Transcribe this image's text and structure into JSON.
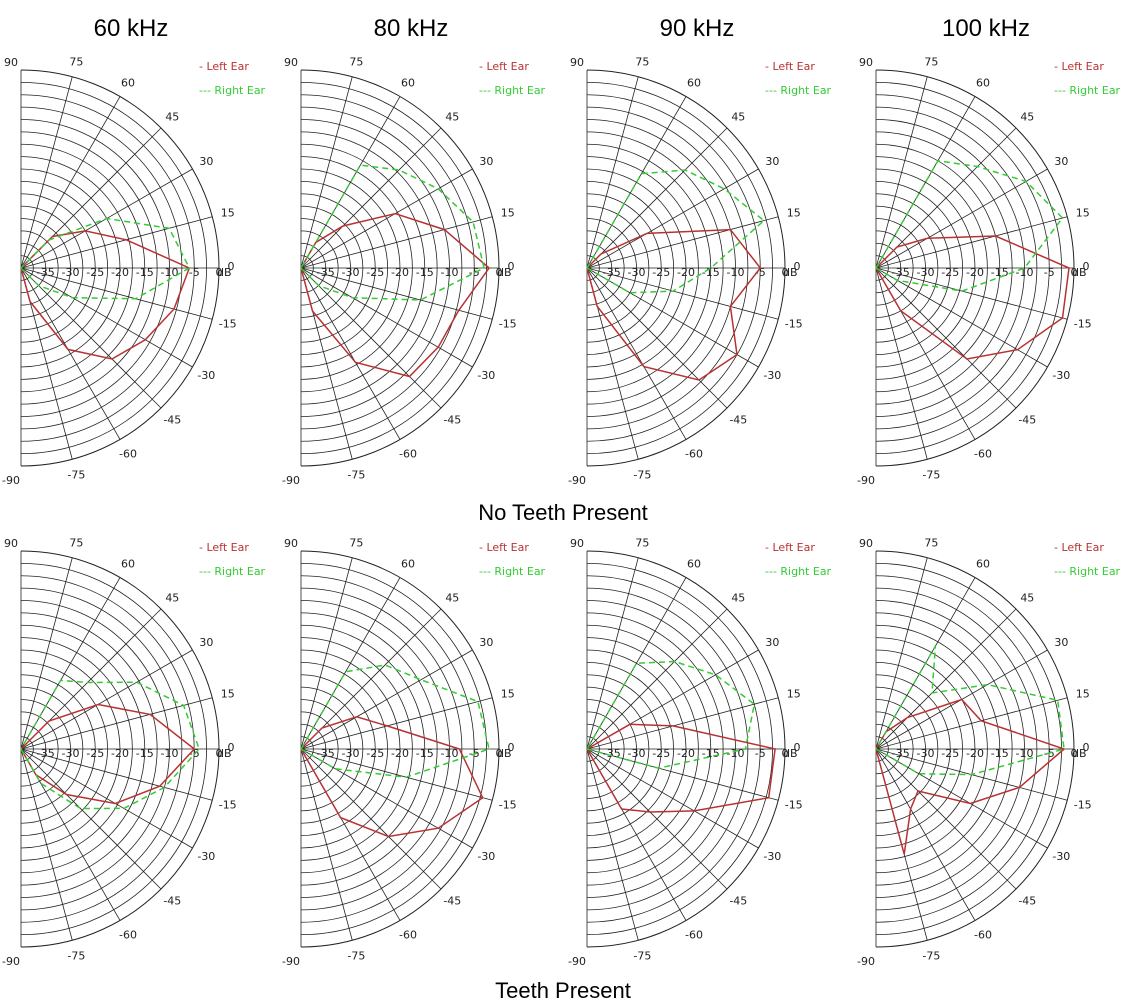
{
  "row_titles": [
    "No Teeth Present",
    "Teeth Present"
  ],
  "colors": {
    "left": "#b83232",
    "right": "#33cc33",
    "grid": "#222222"
  },
  "chart_data": [
    {
      "type": "polar",
      "row_title": "No Teeth Present",
      "title": "60 kHz",
      "radial_unit": "dB",
      "radial_ticks": [
        "-35",
        "-30",
        "-25",
        "-20",
        "-15",
        "-10",
        "-5",
        "0"
      ],
      "rlim": [
        -40,
        0
      ],
      "angle_ticks": [
        90,
        75,
        60,
        45,
        30,
        15,
        0,
        -15,
        -30,
        -45,
        -60,
        -75,
        -90
      ],
      "series": [
        {
          "name": "- Left Ear",
          "style": "solid",
          "angles": [
            -90,
            -75,
            -60,
            -45,
            -30,
            -15,
            0,
            15,
            30,
            45,
            60,
            75,
            90
          ],
          "values": [
            -40,
            -33,
            -21,
            -14,
            -11,
            -8,
            -6,
            -18,
            -25,
            -31,
            -40,
            -40,
            -40
          ]
        },
        {
          "name": "--- Right Ear",
          "style": "dashed",
          "angles": [
            -90,
            -75,
            -60,
            -45,
            -30,
            -15,
            0,
            15,
            30,
            45,
            60,
            75,
            90
          ],
          "values": [
            -40,
            -40,
            -40,
            -35,
            -28,
            -16,
            -6,
            -9,
            -20,
            -32,
            -40,
            -40,
            -40
          ]
        }
      ]
    },
    {
      "type": "polar",
      "row_title": "No Teeth Present",
      "title": "80 kHz",
      "radial_unit": "dB",
      "radial_ticks": [
        "-35",
        "-30",
        "-25",
        "-20",
        "-15",
        "-10",
        "-5",
        "0"
      ],
      "rlim": [
        -40,
        0
      ],
      "angle_ticks": [
        90,
        75,
        60,
        45,
        30,
        15,
        0,
        -15,
        -30,
        -45,
        -60,
        -75,
        -90
      ],
      "series": [
        {
          "name": "- Left Ear",
          "style": "solid",
          "angles": [
            -90,
            -75,
            -60,
            -45,
            -30,
            -15,
            0,
            15,
            30,
            45,
            60,
            75,
            90
          ],
          "values": [
            -40,
            -31,
            -18,
            -9,
            -8,
            -7,
            -2,
            -10,
            -18,
            -28,
            -34,
            -40,
            -40
          ]
        },
        {
          "name": "--- Right Ear",
          "style": "dashed",
          "angles": [
            -90,
            -75,
            -60,
            -45,
            -30,
            -15,
            0,
            15,
            30,
            45,
            60,
            75,
            90
          ],
          "values": [
            -40,
            -40,
            -40,
            -35,
            -28,
            -15,
            -3,
            -4,
            -8,
            -12,
            -16,
            -40,
            -40
          ]
        }
      ]
    },
    {
      "type": "polar",
      "row_title": "No Teeth Present",
      "title": "90 kHz",
      "radial_unit": "dB",
      "radial_ticks": [
        "-35",
        "-30",
        "-25",
        "-20",
        "-15",
        "-10",
        "-5",
        "0"
      ],
      "rlim": [
        -40,
        0
      ],
      "angle_ticks": [
        90,
        75,
        60,
        45,
        30,
        15,
        0,
        -15,
        -30,
        -45,
        -60,
        -75,
        -90
      ],
      "series": [
        {
          "name": "- Left Ear",
          "style": "solid",
          "angles": [
            -90,
            -75,
            -60,
            -45,
            -30,
            -15,
            0,
            15,
            30,
            45,
            60,
            75,
            90
          ],
          "values": [
            -40,
            -32,
            -17,
            -8,
            -5,
            -10,
            -5,
            -10,
            -26,
            -36,
            -40,
            -40,
            -40
          ]
        },
        {
          "name": "--- Right Ear",
          "style": "dashed",
          "angles": [
            -90,
            -75,
            -60,
            -45,
            -30,
            -15,
            0,
            15,
            30,
            45,
            60,
            75,
            90
          ],
          "values": [
            -40,
            -40,
            -40,
            -40,
            -30,
            -22,
            -15,
            -3,
            -8,
            -12,
            -18,
            -40,
            -40
          ]
        }
      ]
    },
    {
      "type": "polar",
      "row_title": "No Teeth Present",
      "title": "100 kHz",
      "radial_unit": "dB",
      "radial_ticks": [
        "-35",
        "-30",
        "-25",
        "-20",
        "-15",
        "-10",
        "-5",
        "0"
      ],
      "rlim": [
        -40,
        0
      ],
      "angle_ticks": [
        90,
        75,
        60,
        45,
        30,
        15,
        0,
        -15,
        -30,
        -45,
        -60,
        -75,
        -90
      ],
      "series": [
        {
          "name": "- Left Ear",
          "style": "solid",
          "angles": [
            -90,
            -75,
            -60,
            -45,
            -30,
            -15,
            0,
            15,
            30,
            45,
            60,
            75,
            90
          ],
          "values": [
            -40,
            -40,
            -30,
            -14,
            -7,
            -1,
            -1,
            -15,
            -28,
            -34,
            -40,
            -40,
            -40
          ]
        },
        {
          "name": "--- Right Ear",
          "style": "dashed",
          "angles": [
            -90,
            -75,
            -60,
            -45,
            -30,
            -15,
            0,
            15,
            30,
            45,
            60,
            75,
            90
          ],
          "values": [
            -40,
            -40,
            -40,
            -40,
            -35,
            -22,
            -10,
            -1,
            -5,
            -11,
            -15,
            -40,
            -40
          ]
        }
      ]
    },
    {
      "type": "polar",
      "row_title": "Teeth Present",
      "title": "60 kHz",
      "radial_unit": "dB",
      "radial_ticks": [
        "-35",
        "-30",
        "-25",
        "-20",
        "-15",
        "-10",
        "-5",
        "0"
      ],
      "rlim": [
        -40,
        0
      ],
      "angle_ticks": [
        90,
        75,
        60,
        45,
        30,
        15,
        0,
        -15,
        -30,
        -45,
        -60,
        -75,
        -90
      ],
      "series": [
        {
          "name": "- Left Ear",
          "style": "solid",
          "angles": [
            -90,
            -75,
            -60,
            -45,
            -30,
            -15,
            0,
            15,
            30,
            45,
            60,
            75,
            90
          ],
          "values": [
            -40,
            -40,
            -34,
            -27,
            -18,
            -11,
            -5,
            -13,
            -22,
            -32,
            -40,
            -40,
            -40
          ]
        },
        {
          "name": "--- Right Ear",
          "style": "dashed",
          "angles": [
            -90,
            -75,
            -60,
            -45,
            -30,
            -15,
            0,
            15,
            30,
            45,
            60,
            75,
            90
          ],
          "values": [
            -40,
            -40,
            -32,
            -23,
            -16,
            -10,
            -4,
            -6,
            -13,
            -21,
            -24,
            -40,
            -40
          ]
        }
      ]
    },
    {
      "type": "polar",
      "row_title": "Teeth Present",
      "title": "80 kHz",
      "radial_unit": "dB",
      "radial_ticks": [
        "-35",
        "-30",
        "-25",
        "-20",
        "-15",
        "-10",
        "-5",
        "0"
      ],
      "rlim": [
        -40,
        0
      ],
      "angle_ticks": [
        90,
        75,
        60,
        45,
        30,
        15,
        0,
        -15,
        -30,
        -45,
        -60,
        -75,
        -90
      ],
      "series": [
        {
          "name": "- Left Ear",
          "style": "solid",
          "angles": [
            -90,
            -75,
            -60,
            -45,
            -30,
            -15,
            0,
            15,
            30,
            45,
            60,
            75,
            90
          ],
          "values": [
            -40,
            -40,
            -24,
            -15,
            -8,
            -2,
            -8,
            -22,
            -27,
            -34,
            -40,
            -40,
            -40
          ]
        },
        {
          "name": "--- Right Ear",
          "style": "dashed",
          "angles": [
            -90,
            -75,
            -60,
            -45,
            -30,
            -15,
            0,
            15,
            30,
            45,
            60,
            75,
            90
          ],
          "values": [
            -40,
            -40,
            -40,
            -40,
            -32,
            -18,
            -2,
            -3,
            -12,
            -16,
            -22,
            -40,
            -40
          ]
        }
      ]
    },
    {
      "type": "polar",
      "row_title": "Teeth Present",
      "title": "90 kHz",
      "radial_unit": "dB",
      "radial_ticks": [
        "-35",
        "-30",
        "-25",
        "-20",
        "-15",
        "-10",
        "-5",
        "0"
      ],
      "rlim": [
        -40,
        0
      ],
      "angle_ticks": [
        90,
        75,
        60,
        45,
        30,
        15,
        0,
        -15,
        -30,
        -45,
        -60,
        -75,
        -90
      ],
      "series": [
        {
          "name": "- Left Ear",
          "style": "solid",
          "angles": [
            -90,
            -75,
            -60,
            -45,
            -30,
            -15,
            0,
            15,
            30,
            45,
            60,
            75,
            90
          ],
          "values": [
            -40,
            -40,
            -26,
            -22,
            -15,
            -2,
            -2,
            -22,
            -30,
            -40,
            -40,
            -40,
            -40
          ]
        },
        {
          "name": "--- Right Ear",
          "style": "dashed",
          "angles": [
            -90,
            -75,
            -60,
            -45,
            -30,
            -15,
            0,
            15,
            30,
            45,
            60,
            75,
            90
          ],
          "values": [
            -40,
            -40,
            -40,
            -40,
            -40,
            -25,
            -8,
            -5,
            -10,
            -15,
            -20,
            -40,
            -40
          ]
        }
      ]
    },
    {
      "type": "polar",
      "row_title": "Teeth Present",
      "title": "100 kHz",
      "radial_unit": "dB",
      "radial_ticks": [
        "-35",
        "-30",
        "-25",
        "-20",
        "-15",
        "-10",
        "-5",
        "0"
      ],
      "rlim": [
        -40,
        0
      ],
      "angle_ticks": [
        90,
        75,
        60,
        45,
        30,
        15,
        0,
        -15,
        -30,
        -45,
        -60,
        -75,
        -90
      ],
      "series": [
        {
          "name": "- Left Ear",
          "style": "solid",
          "angles": [
            -90,
            -75,
            -60,
            -45,
            -30,
            -15,
            0,
            15,
            30,
            45,
            60,
            75,
            90
          ],
          "values": [
            -40,
            -18,
            -26,
            -28,
            -18,
            -10,
            -2,
            -18,
            -20,
            -31,
            -36,
            -40,
            -40
          ]
        },
        {
          "name": "--- Right Ear",
          "style": "dashed",
          "angles": [
            -90,
            -75,
            -60,
            -45,
            -30,
            -15,
            0,
            15,
            30,
            45,
            60,
            75,
            90
          ],
          "values": [
            -40,
            -40,
            -40,
            -40,
            -30,
            -20,
            -2,
            -2,
            -14,
            -24,
            -16,
            -40,
            -40
          ]
        }
      ]
    }
  ]
}
